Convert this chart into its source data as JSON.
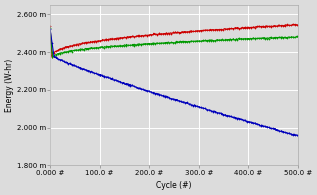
{
  "title": "",
  "xlabel": "Cycle (#)",
  "ylabel": "Energy (W-hr)",
  "xlim": [
    0,
    500
  ],
  "ylim": [
    1.8,
    2.65
  ],
  "yticks": [
    1.8,
    2.0,
    2.2,
    2.4,
    2.6
  ],
  "ytick_labels": [
    "1.800 m",
    "2.000 m",
    "2.200 m",
    "2.400 m",
    "2.600 m"
  ],
  "xticks": [
    0,
    100,
    200,
    300,
    400,
    500
  ],
  "xtick_labels": [
    "0.000 #",
    "100.0 #",
    "200.0 #",
    "300.0 #",
    "400.0 #",
    "500.0 #"
  ],
  "bg_color": "#dcdcdc",
  "grid_color": "#ffffff",
  "line_colors": [
    "#cc0000",
    "#009900",
    "#0000bb"
  ],
  "line_width": 0.8,
  "num_points": 500
}
